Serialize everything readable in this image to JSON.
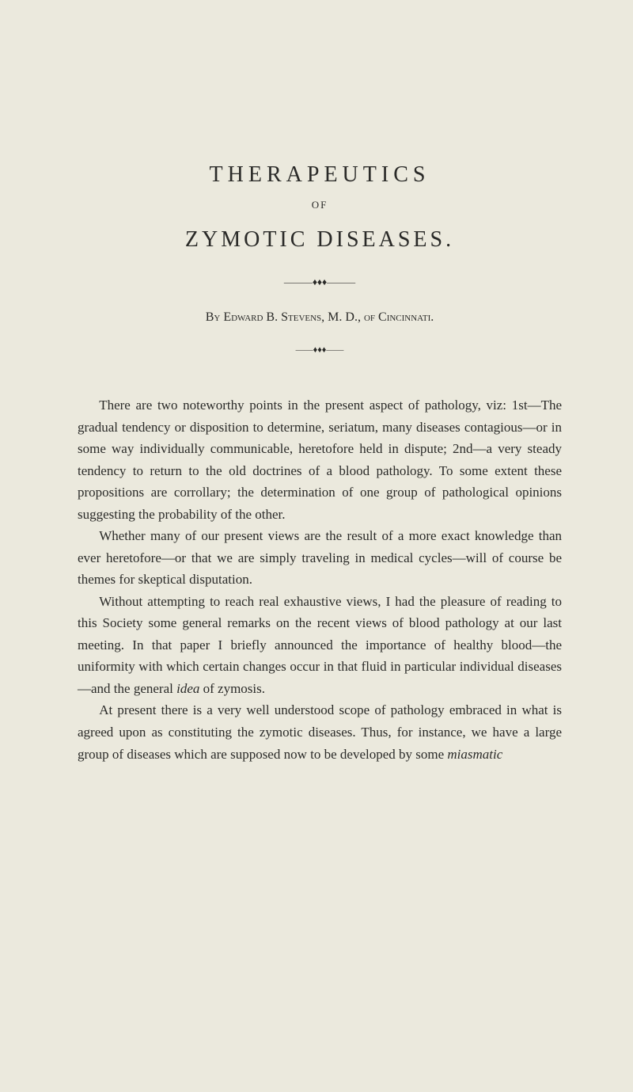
{
  "title_main": "THERAPEUTICS",
  "title_of": "OF",
  "title_sub": "ZYMOTIC DISEASES.",
  "ornament1": "———♦♦♦———",
  "byline_prefix": "By ",
  "byline_name": "Edward B. Stevens,",
  "byline_suffix": " M. D., of ",
  "byline_place": "Cincinnati.",
  "ornament2": "——♦♦♦——",
  "paragraphs": [
    "There are two noteworthy points in the present aspect of pathology, viz: 1st—The gradual tendency or disposition to determine, seriatum, many diseases contagious—or in some way individually communicable, heretofore held in dispute; 2nd—a very steady tendency to return to the old doctrines of a blood pathology. To some extent these propositions are corrollary; the determination of one group of pathological opinions suggesting the probability of the other.",
    "Whether many of our present views are the result of a more exact knowledge than ever heretofore—or that we are simply traveling in medical cycles—will of course be themes for skeptical disputation.",
    "Without attempting to reach real exhaustive views, I had the pleasure of reading to this Society some general remarks on the recent views of blood pathology at our last meeting. In that paper I briefly announced the importance of healthy blood—the uniformity with which certain changes occur in that fluid in particular individual diseases—and the general ",
    "At present there is a very well understood scope of pathology embraced in what is agreed upon as constituting the zymotic diseases. Thus, for instance, we have a large group of diseases which are supposed now to be developed by some "
  ],
  "idea_word": "idea",
  "zymosis_phrase": " of zymosis.",
  "miasmatic_word": "miasmatic",
  "colors": {
    "background": "#ebe9dd",
    "text": "#2a2a28"
  },
  "typography": {
    "title_fontsize": 28,
    "title_letterspacing": 6,
    "body_fontsize": 17,
    "body_lineheight": 1.62,
    "byline_fontsize": 16
  }
}
